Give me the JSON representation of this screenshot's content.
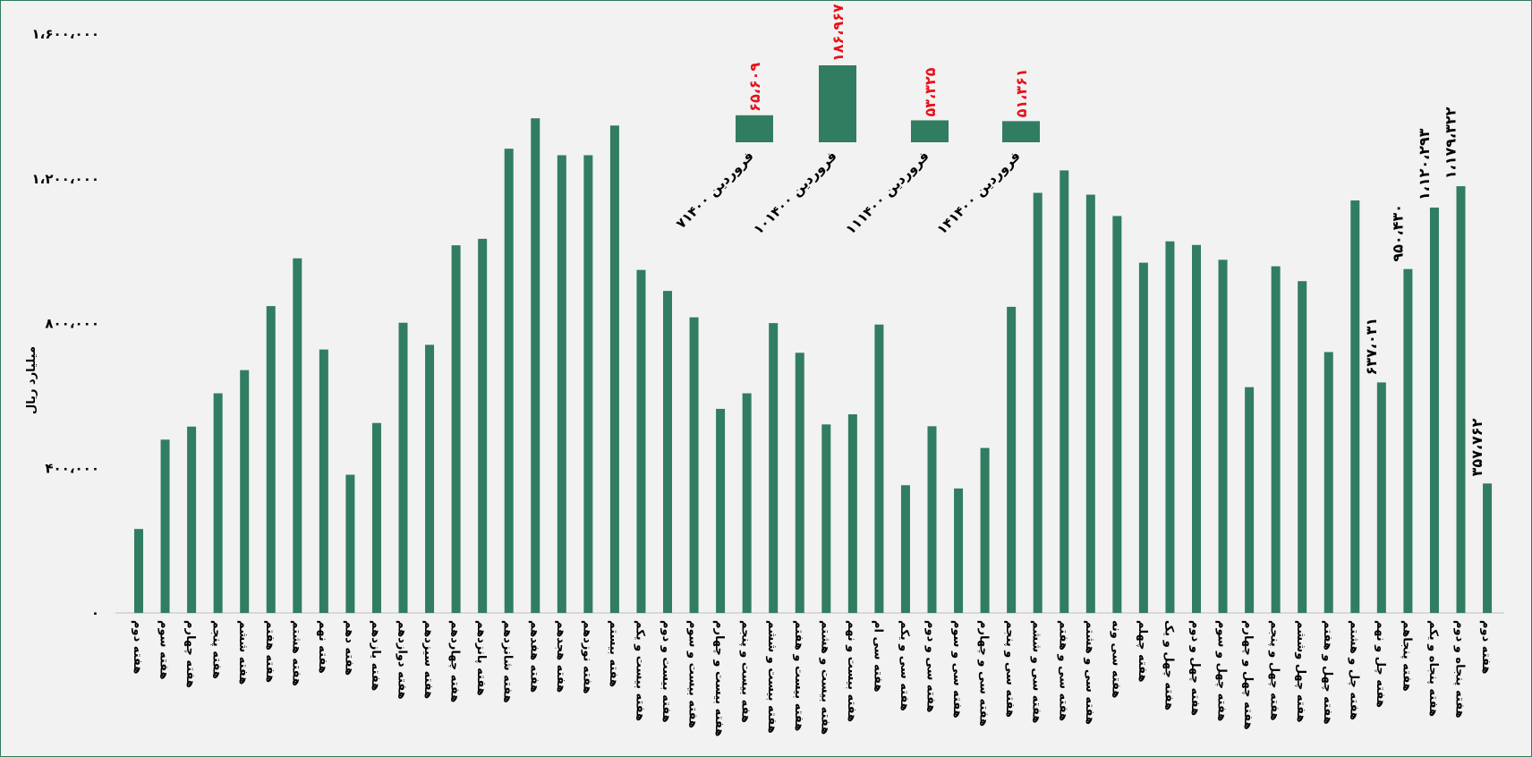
{
  "chart_data": [
    {
      "type": "bar",
      "ylabel": "میلیارد ریال",
      "ylim": [
        0,
        1600000
      ],
      "yticks": [
        0,
        400000,
        800000,
        1200000,
        1600000
      ],
      "ytick_labels": [
        "۰",
        "۴۰۰،۰۰۰",
        "۸۰۰،۰۰۰",
        "۱،۲۰۰،۰۰۰",
        "۱،۶۰۰،۰۰۰"
      ],
      "grid": false,
      "color": "#317d62",
      "categories": [
        "هفته دوم",
        "هفته سوم",
        "هفته چهارم",
        "هفته پنجم",
        "هفته ششم",
        "هفته هفتم",
        "هفته هشتم",
        "هفته نهم",
        "هفته دهم",
        "هفته یازدهم",
        "هفته دوازدهم",
        "هفته سیزدهم",
        "هفته چهاردهم",
        "هفته پانزدهم",
        "هفته شانزدهم",
        "هفته هفدهم",
        "هفته هجدهم",
        "هفته نوزدهم",
        "هفته بیستم",
        "هفته بیست و یکم",
        "هفته بیست و دوم",
        "هفته بیست و سوم",
        "هفته بیست و چهارم",
        "هفه بیست و پنجم",
        "هفته بیست و ششم",
        "هفته بیست و هفتم",
        "هفته بیست و هشتم",
        "هفته بیست و نهم",
        "هفته سی ام",
        "هفته سی و یکم",
        "هفته سی و دوم",
        "هفته سی و سوم",
        "هفته سی و چهارم",
        "هفته سی و پنجم",
        "هفته سی و ششم",
        "هفته سی و هفتم",
        "هفته سی و هشتم",
        "هفته سی ونه",
        "هفته چهلم",
        "هفته چهل و یک",
        "هفته چهل و دوم",
        "هفته چهل و سوم",
        "هفته چهل و چهارم",
        "هفته چهل و پنجم",
        "هفته چهل وششم",
        "هفته چهل و هفتم",
        "هفته چل و هشتم",
        "هفته چل و نهم",
        "هفته پنجاهم",
        "هفته پنجاه و یکم",
        "هفته پنجاه و دوم",
        "هفته دوم"
      ],
      "values": [
        232000,
        479000,
        515000,
        607000,
        671000,
        848000,
        980000,
        728000,
        382000,
        525000,
        802000,
        741000,
        1016000,
        1034000,
        1283000,
        1367000,
        1265000,
        1265000,
        1347000,
        948000,
        890000,
        817000,
        564000,
        607000,
        801000,
        719000,
        521000,
        549000,
        797000,
        353000,
        516000,
        344000,
        456000,
        846000,
        1161000,
        1223000,
        1156000,
        1097000,
        968000,
        1027000,
        1017000,
        976000,
        624000,
        958000,
        917000,
        721000,
        1140000,
        637031,
        950430,
        1120293,
        1179322,
        357762
      ],
      "data_labels": [
        {
          "index": 47,
          "text": "۶۳۷،۰۳۱"
        },
        {
          "index": 48,
          "text": "۹۵۰،۴۳۰"
        },
        {
          "index": 49,
          "text": "۱،۱۲۰،۲۹۳"
        },
        {
          "index": 50,
          "text": "۱،۱۷۹،۳۲۲"
        },
        {
          "index": 51,
          "text": "۳۵۷،۷۶۲"
        }
      ]
    },
    {
      "type": "bar",
      "color": "#317d62",
      "label_color": "#e8101a",
      "categories": [
        "۷فروردین ۱۴۰۰",
        "۱۰فروردین ۱۴۰۰",
        "۱۱فروردین ۱۴۰۰",
        "۱۴فروردین ۱۴۰۰"
      ],
      "values": [
        65609,
        186967,
        53325,
        51361
      ],
      "labels": [
        "۶۵،۶۰۹",
        "۱۸۶،۹۶۷",
        "۵۳،۳۲۵",
        "۵۱،۳۶۱"
      ]
    }
  ]
}
